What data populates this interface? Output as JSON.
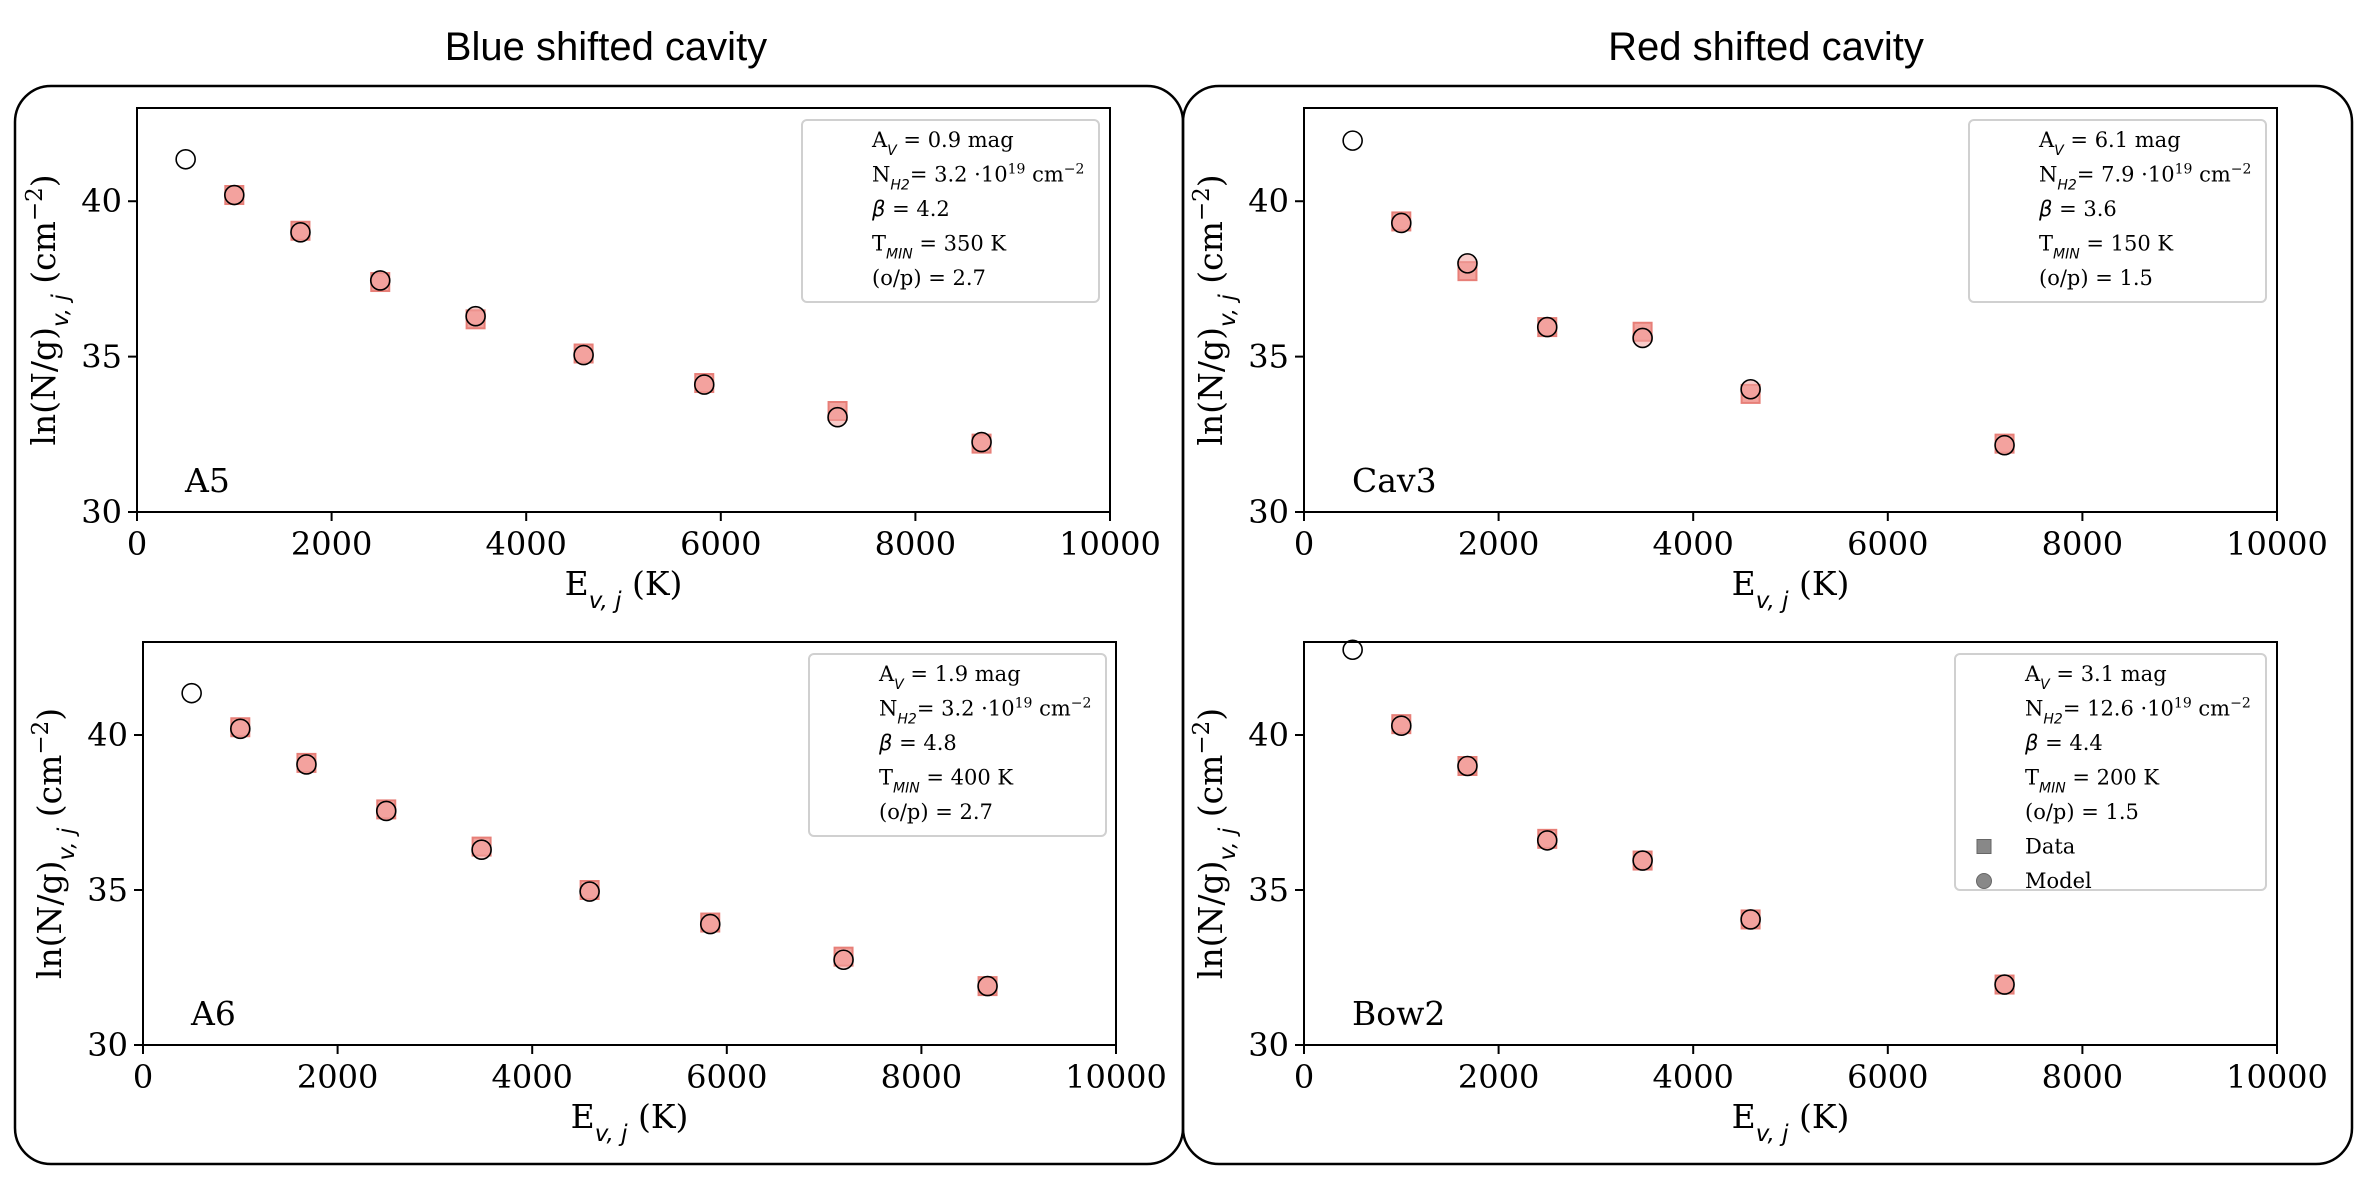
{
  "group_titles": [
    "Blue shifted cavity",
    "Red shifted cavity"
  ],
  "colors": {
    "data_fill": "#f3a39e",
    "data_edge": "#e77f78",
    "model_edge": "#000000",
    "legend_marker": "#888888",
    "frame": "#000000"
  },
  "chart_data": [
    {
      "type": "scatter",
      "name": "A5",
      "group": "Blue shifted cavity",
      "xlabel": "E_{v,j} (K)",
      "ylabel": "ln(N/g)_{v,j} (cm^{-2})",
      "xlim": [
        0,
        10000
      ],
      "ylim": [
        30,
        43
      ],
      "xticks": [
        0,
        2000,
        4000,
        6000,
        8000,
        10000
      ],
      "yticks": [
        30,
        35,
        40
      ],
      "params": {
        "Av": "0.9",
        "NH2": "3.2",
        "beta": "4.2",
        "Tmin": "350",
        "op": "2.7"
      },
      "legend_markers": false,
      "model": {
        "x": [
          500,
          1000,
          1680,
          2500,
          3480,
          4590,
          5830,
          7200,
          8680
        ],
        "y": [
          41.35,
          40.2,
          39.0,
          37.45,
          36.3,
          35.05,
          34.1,
          33.05,
          32.25
        ]
      },
      "data": {
        "x": [
          1000,
          1680,
          2500,
          3480,
          4590,
          5830,
          7200,
          8680
        ],
        "y": [
          40.2,
          39.05,
          37.4,
          36.2,
          35.1,
          34.15,
          33.25,
          32.2
        ]
      }
    },
    {
      "type": "scatter",
      "name": "Cav3",
      "group": "Red shifted cavity",
      "xlabel": "E_{v,j} (K)",
      "ylabel": "ln(N/g)_{v,j} (cm^{-2})",
      "xlim": [
        0,
        10000
      ],
      "ylim": [
        30,
        43
      ],
      "xticks": [
        0,
        2000,
        4000,
        6000,
        8000,
        10000
      ],
      "yticks": [
        30,
        35,
        40
      ],
      "params": {
        "Av": "6.1",
        "NH2": "7.9",
        "beta": "3.6",
        "Tmin": "150",
        "op": "1.5"
      },
      "legend_markers": false,
      "model": {
        "x": [
          500,
          1000,
          1680,
          2500,
          3480,
          4590,
          7200
        ],
        "y": [
          41.95,
          39.3,
          38.0,
          35.95,
          35.6,
          33.95,
          32.15
        ]
      },
      "data": {
        "x": [
          1000,
          1680,
          2500,
          3480,
          4590,
          7200
        ],
        "y": [
          39.35,
          37.75,
          35.95,
          35.8,
          33.8,
          32.2
        ]
      }
    },
    {
      "type": "scatter",
      "name": "A6",
      "group": "Blue shifted cavity",
      "xlabel": "E_{v,j} (K)",
      "ylabel": "ln(N/g)_{v,j} (cm^{-2})",
      "xlim": [
        0,
        10000
      ],
      "ylim": [
        30,
        43
      ],
      "xticks": [
        0,
        2000,
        4000,
        6000,
        8000,
        10000
      ],
      "yticks": [
        30,
        35,
        40
      ],
      "params": {
        "Av": "1.9",
        "NH2": "3.2",
        "beta": "4.8",
        "Tmin": "400",
        "op": "2.7"
      },
      "legend_markers": false,
      "model": {
        "x": [
          500,
          1000,
          1680,
          2500,
          3480,
          4590,
          5830,
          7200,
          8680
        ],
        "y": [
          41.35,
          40.2,
          39.05,
          37.55,
          36.3,
          34.95,
          33.9,
          32.75,
          31.9
        ]
      },
      "data": {
        "x": [
          1000,
          1680,
          2500,
          3480,
          4590,
          5830,
          7200,
          8680
        ],
        "y": [
          40.25,
          39.1,
          37.6,
          36.4,
          35.0,
          33.95,
          32.85,
          31.9
        ]
      }
    },
    {
      "type": "scatter",
      "name": "Bow2",
      "group": "Red shifted cavity",
      "xlabel": "E_{v,j} (K)",
      "ylabel": "ln(N/g)_{v,j} (cm^{-2})",
      "xlim": [
        0,
        10000
      ],
      "ylim": [
        30,
        43
      ],
      "xticks": [
        0,
        2000,
        4000,
        6000,
        8000,
        10000
      ],
      "yticks": [
        30,
        35,
        40
      ],
      "params": {
        "Av": "3.1",
        "NH2": "12.6",
        "beta": "4.4",
        "Tmin": "200",
        "op": "1.5"
      },
      "legend_markers": true,
      "legend_labels": [
        "Data",
        "Model"
      ],
      "model": {
        "x": [
          500,
          1000,
          1680,
          2500,
          3480,
          4590,
          7200
        ],
        "y": [
          42.75,
          40.3,
          39.0,
          36.6,
          35.95,
          34.05,
          31.95
        ]
      },
      "data": {
        "x": [
          1000,
          1680,
          2500,
          3480,
          4590,
          7200
        ],
        "y": [
          40.35,
          39.0,
          36.65,
          35.95,
          34.05,
          31.95
        ]
      }
    }
  ]
}
